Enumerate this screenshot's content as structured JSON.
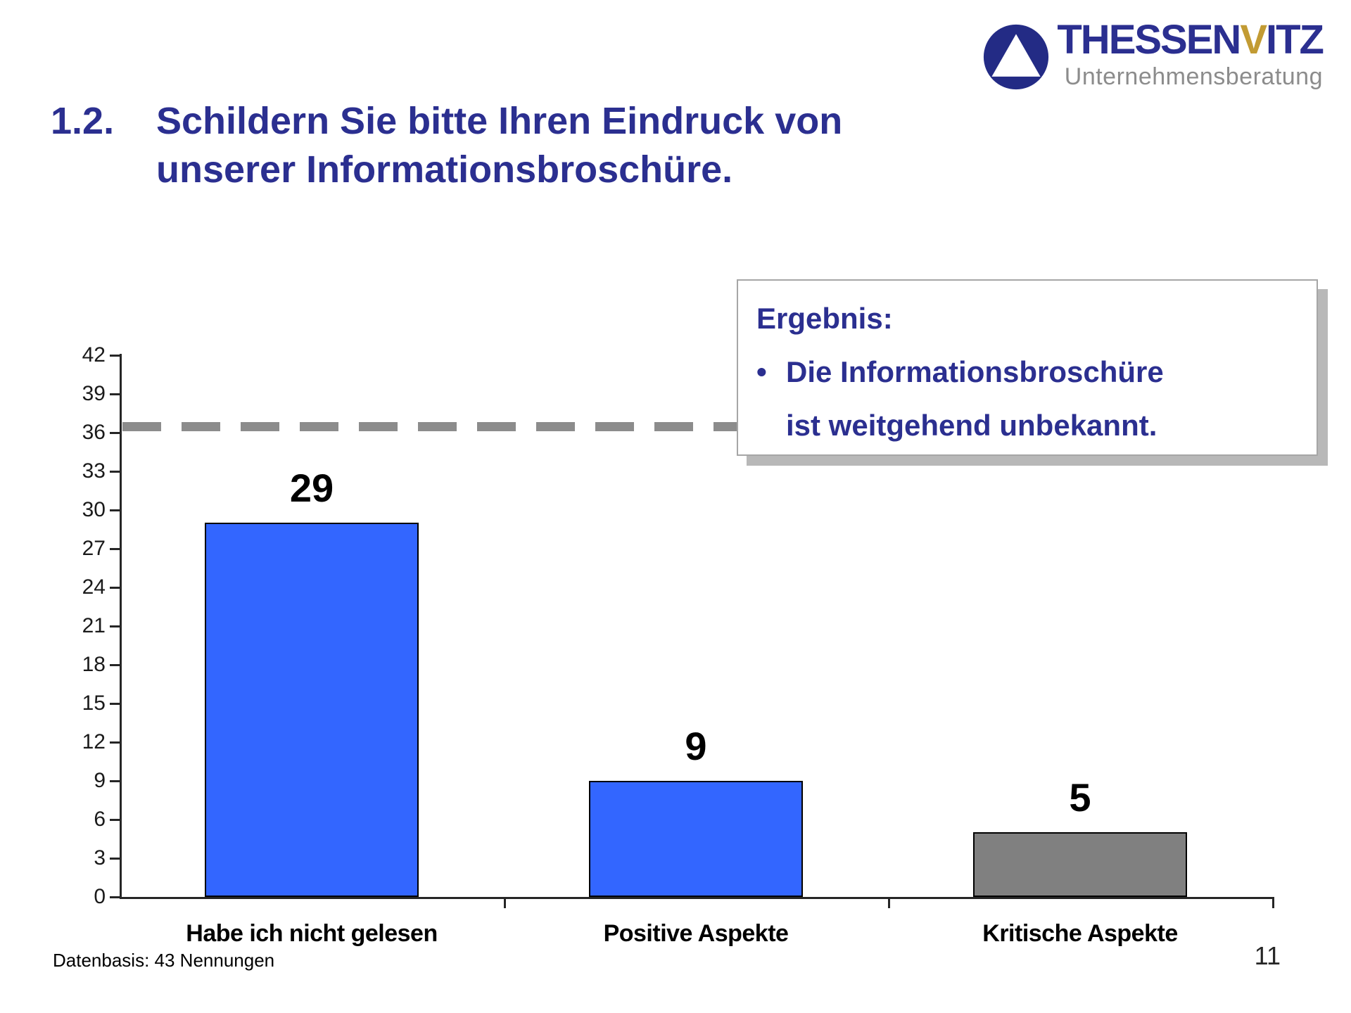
{
  "logo": {
    "icon": "triangle-circle-icon",
    "name_part1": "THESSEN",
    "name_accent": "V",
    "name_part2": "ITZ",
    "subtitle": "Unternehmensberatung",
    "name_color": "#2B2F90",
    "accent_color": "#C29B33",
    "subtitle_color": "#8C8C8C",
    "icon_circle_color": "#232B85"
  },
  "title": {
    "number": "1.2.",
    "line1": "Schildern Sie bitte Ihren Eindruck von",
    "line2": "unserer Informationsbroschüre.",
    "color": "#2B2F90"
  },
  "chart_data": {
    "type": "bar",
    "categories": [
      "Habe ich nicht gelesen",
      "Positive Aspekte",
      "Kritische Aspekte"
    ],
    "values": [
      29,
      9,
      5
    ],
    "bar_colors": [
      "#3366FF",
      "#3366FF",
      "#808080"
    ],
    "title": "",
    "xlabel": "",
    "ylabel": "",
    "ylim": [
      0,
      42
    ],
    "ytick_step": 3,
    "grid": false,
    "legend": "none",
    "reference_line": {
      "value": 36.5,
      "style": "dashed",
      "color": "#8C8C8C"
    }
  },
  "annotation": {
    "heading": "Ergebnis:",
    "bullet": "•",
    "line1": "Die Informationsbroschüre",
    "line2": "ist weitgehend unbekannt.",
    "color": "#2B2F90"
  },
  "footer": {
    "datasource": "Datenbasis: 43 Nennungen",
    "page_number": "11"
  }
}
